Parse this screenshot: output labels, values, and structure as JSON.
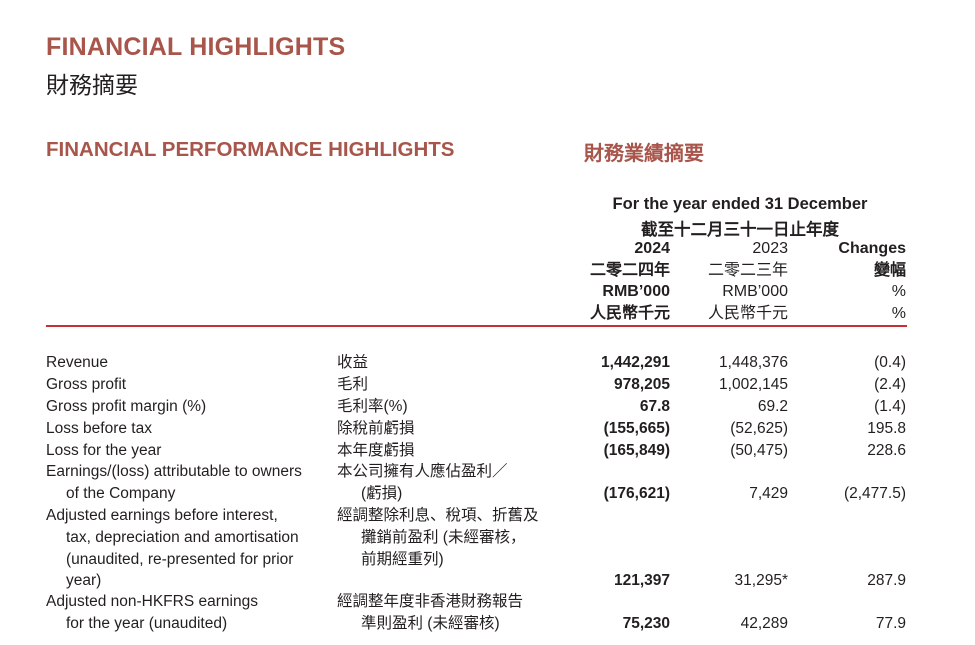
{
  "header": {
    "title_en": "FINANCIAL HIGHLIGHTS",
    "title_zh": "財務摘要",
    "section_en": "FINANCIAL PERFORMANCE HIGHLIGHTS",
    "section_zh": "財務業績摘要"
  },
  "table_header": {
    "period_en": "For the year ended 31 December",
    "period_zh": "截至十二月三十一日止年度",
    "col_2024": {
      "year": "2024",
      "year_zh": "二零二四年",
      "unit": "RMB’000",
      "unit_zh": "人民幣千元"
    },
    "col_2023": {
      "year": "2023",
      "year_zh": "二零二三年",
      "unit": "RMB’000",
      "unit_zh": "人民幣千元"
    },
    "col_changes": {
      "label": "Changes",
      "label_zh": "變幅",
      "unit": "%",
      "unit_zh": "%"
    }
  },
  "rows": [
    {
      "en": [
        "Revenue"
      ],
      "zh": [
        "收益"
      ],
      "v2024": "1,442,291",
      "v2023": "1,448,376",
      "change": "(0.4)"
    },
    {
      "en": [
        "Gross profit"
      ],
      "zh": [
        "毛利"
      ],
      "v2024": "978,205",
      "v2023": "1,002,145",
      "change": "(2.4)"
    },
    {
      "en": [
        "Gross profit margin (%)"
      ],
      "zh": [
        "毛利率(%)"
      ],
      "v2024": "67.8",
      "v2023": "69.2",
      "change": "(1.4)"
    },
    {
      "en": [
        "Loss before tax"
      ],
      "zh": [
        "除稅前虧損"
      ],
      "v2024": "(155,665)",
      "v2023": "(52,625)",
      "change": "195.8"
    },
    {
      "en": [
        "Loss for the year"
      ],
      "zh": [
        "本年度虧損"
      ],
      "v2024": "(165,849)",
      "v2023": "(50,475)",
      "change": "228.6"
    },
    {
      "en": [
        "Earnings/(loss) attributable to owners",
        "of the Company"
      ],
      "zh": [
        "本公司擁有人應佔盈利／",
        "(虧損)"
      ],
      "v2024": "(176,621)",
      "v2023": "7,429",
      "change": "(2,477.5)"
    },
    {
      "en": [
        "Adjusted earnings before interest,",
        "tax, depreciation and amortisation",
        "(unaudited, re-presented for prior",
        "year)"
      ],
      "zh": [
        "經調整除利息、稅項、折舊及",
        "攤銷前盈利 (未經審核，",
        "前期經重列)"
      ],
      "v2024": "121,397",
      "v2023": "31,295*",
      "change": "287.9"
    },
    {
      "en": [
        "Adjusted non-HKFRS earnings",
        "for the year (unaudited)"
      ],
      "zh": [
        "經調整年度非香港財務報告",
        "準則盈利 (未經審核)"
      ],
      "v2024": "75,230",
      "v2023": "42,289",
      "change": "77.9"
    }
  ]
}
